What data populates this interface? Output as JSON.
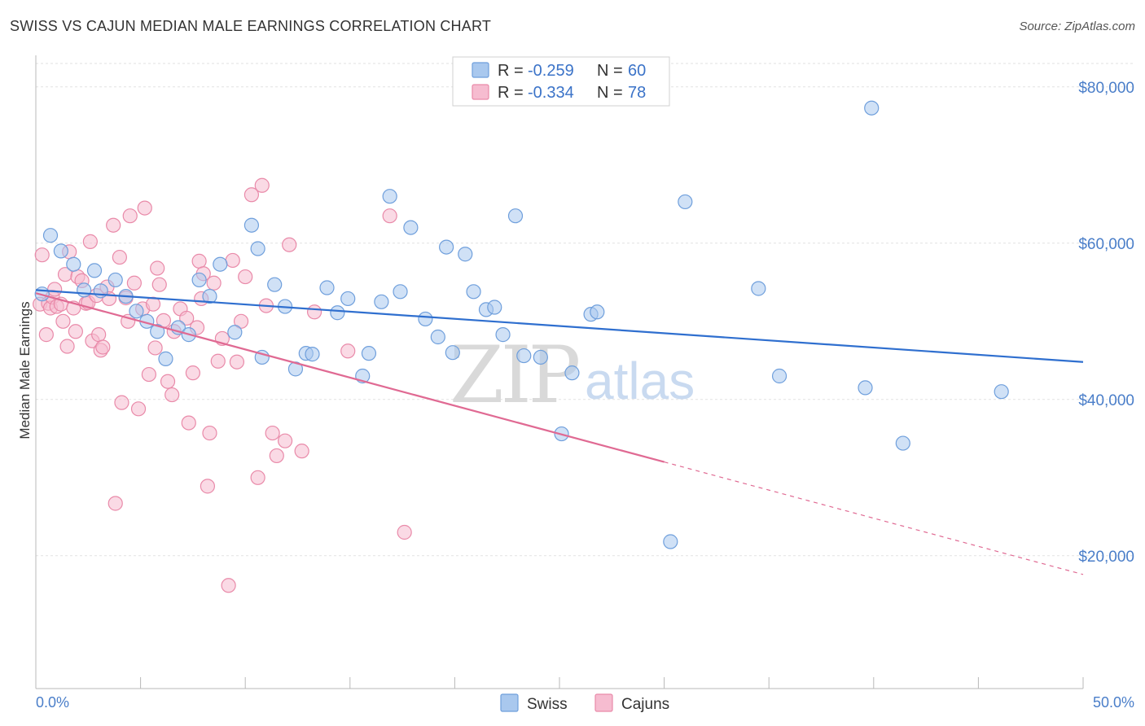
{
  "title": "SWISS VS CAJUN MEDIAN MALE EARNINGS CORRELATION CHART",
  "source": "Source: ZipAtlas.com",
  "watermark": {
    "zip": "ZIP",
    "atlas": "atlas"
  },
  "legend": {
    "swiss": {
      "r_label": "R = ",
      "r_value": "-0.259",
      "n_label": "N = ",
      "n_value": "60"
    },
    "cajuns": {
      "r_label": "R = ",
      "r_value": "-0.334",
      "n_label": "N = ",
      "n_value": "78"
    }
  },
  "bottom_legend": {
    "swiss": "Swiss",
    "cajuns": "Cajuns"
  },
  "colors": {
    "swiss_fill": "#a9c8ee",
    "swiss_stroke": "#6f9fdc",
    "swiss_line": "#2f6fcf",
    "cajun_fill": "#f6bcd0",
    "cajun_stroke": "#e98aa9",
    "cajun_line": "#e06a93",
    "tick_text": "#4a7ec9"
  },
  "chart_data": {
    "type": "scatter",
    "title": "SWISS VS CAJUN MEDIAN MALE EARNINGS CORRELATION CHART",
    "xlabel": "",
    "ylabel": "Median Male Earnings",
    "xlim": [
      0,
      50
    ],
    "ylim": [
      3000,
      83000
    ],
    "x_tick_labels": [
      "0.0%",
      "50.0%"
    ],
    "y_ticks": [
      20000,
      40000,
      60000,
      80000
    ],
    "y_tick_labels": [
      "$20,000",
      "$40,000",
      "$60,000",
      "$80,000"
    ],
    "grid": true,
    "legend_position": "top-center",
    "series": [
      {
        "name": "Swiss",
        "r": -0.259,
        "n": 60,
        "trend": {
          "x0": 0,
          "y0": 54000,
          "x1": 50,
          "y1": 44800
        },
        "points": [
          [
            0.3,
            53500
          ],
          [
            0.7,
            61000
          ],
          [
            1.2,
            59000
          ],
          [
            1.8,
            57300
          ],
          [
            2.3,
            54000
          ],
          [
            2.8,
            56500
          ],
          [
            3.8,
            55300
          ],
          [
            4.3,
            53200
          ],
          [
            4.8,
            51300
          ],
          [
            5.3,
            50000
          ],
          [
            5.8,
            48700
          ],
          [
            6.2,
            45200
          ],
          [
            6.8,
            49200
          ],
          [
            7.3,
            48300
          ],
          [
            7.8,
            55300
          ],
          [
            8.3,
            53200
          ],
          [
            8.8,
            57300
          ],
          [
            9.5,
            48600
          ],
          [
            10.3,
            62300
          ],
          [
            10.6,
            59300
          ],
          [
            10.8,
            45400
          ],
          [
            11.4,
            54700
          ],
          [
            11.9,
            51900
          ],
          [
            12.4,
            43900
          ],
          [
            12.9,
            45900
          ],
          [
            13.2,
            45800
          ],
          [
            13.9,
            54300
          ],
          [
            14.4,
            51100
          ],
          [
            14.9,
            52900
          ],
          [
            15.6,
            43000
          ],
          [
            15.9,
            45900
          ],
          [
            16.5,
            52500
          ],
          [
            16.9,
            66000
          ],
          [
            17.4,
            53800
          ],
          [
            17.9,
            62000
          ],
          [
            18.6,
            50300
          ],
          [
            19.2,
            48000
          ],
          [
            19.6,
            59500
          ],
          [
            19.9,
            46000
          ],
          [
            20.5,
            58600
          ],
          [
            20.9,
            53800
          ],
          [
            21.5,
            51500
          ],
          [
            21.9,
            51800
          ],
          [
            22.3,
            48300
          ],
          [
            22.9,
            63500
          ],
          [
            23.3,
            45600
          ],
          [
            24.1,
            45400
          ],
          [
            25.1,
            35600
          ],
          [
            25.6,
            43400
          ],
          [
            26.5,
            50900
          ],
          [
            26.8,
            51200
          ],
          [
            30.3,
            21800
          ],
          [
            31.0,
            65300
          ],
          [
            34.5,
            54200
          ],
          [
            35.5,
            43000
          ],
          [
            39.6,
            41500
          ],
          [
            39.9,
            77300
          ],
          [
            41.4,
            34400
          ],
          [
            46.1,
            41000
          ],
          [
            3.1,
            53900
          ]
        ]
      },
      {
        "name": "Cajuns",
        "r": -0.334,
        "n": 78,
        "trend": {
          "x0": 0,
          "y0": 53600,
          "x1": 30,
          "y1": 32000,
          "dash_x1": 50,
          "dash_y1": 17600
        },
        "points": [
          [
            0.2,
            52200
          ],
          [
            0.3,
            58500
          ],
          [
            0.5,
            48300
          ],
          [
            0.6,
            52300
          ],
          [
            0.7,
            51700
          ],
          [
            0.8,
            53100
          ],
          [
            0.9,
            54100
          ],
          [
            1.0,
            51900
          ],
          [
            1.2,
            52200
          ],
          [
            1.3,
            50000
          ],
          [
            1.4,
            56000
          ],
          [
            1.5,
            46800
          ],
          [
            1.6,
            58900
          ],
          [
            1.8,
            51700
          ],
          [
            1.9,
            48700
          ],
          [
            2.0,
            55700
          ],
          [
            2.2,
            55200
          ],
          [
            2.4,
            52300
          ],
          [
            2.5,
            52400
          ],
          [
            2.6,
            60200
          ],
          [
            2.7,
            47500
          ],
          [
            2.9,
            53300
          ],
          [
            3.0,
            48300
          ],
          [
            3.1,
            46300
          ],
          [
            3.2,
            46700
          ],
          [
            3.4,
            54400
          ],
          [
            3.5,
            52900
          ],
          [
            3.7,
            62300
          ],
          [
            3.8,
            26700
          ],
          [
            4.0,
            58200
          ],
          [
            4.1,
            39600
          ],
          [
            4.3,
            53000
          ],
          [
            4.4,
            50000
          ],
          [
            4.5,
            63500
          ],
          [
            4.7,
            54900
          ],
          [
            4.9,
            38800
          ],
          [
            5.1,
            51600
          ],
          [
            5.2,
            64500
          ],
          [
            5.4,
            43200
          ],
          [
            5.6,
            52200
          ],
          [
            5.7,
            46600
          ],
          [
            5.8,
            56800
          ],
          [
            5.9,
            54700
          ],
          [
            6.1,
            50100
          ],
          [
            6.3,
            42300
          ],
          [
            6.5,
            40600
          ],
          [
            6.6,
            48700
          ],
          [
            6.9,
            51600
          ],
          [
            7.2,
            50400
          ],
          [
            7.3,
            37000
          ],
          [
            7.5,
            43400
          ],
          [
            7.7,
            49200
          ],
          [
            7.8,
            57700
          ],
          [
            7.9,
            52900
          ],
          [
            8.0,
            56100
          ],
          [
            8.2,
            28900
          ],
          [
            8.3,
            35700
          ],
          [
            8.5,
            54900
          ],
          [
            8.7,
            44900
          ],
          [
            8.9,
            47800
          ],
          [
            9.2,
            16200
          ],
          [
            9.4,
            57800
          ],
          [
            9.6,
            44800
          ],
          [
            9.8,
            50000
          ],
          [
            10.0,
            55700
          ],
          [
            10.3,
            66200
          ],
          [
            10.6,
            30000
          ],
          [
            10.8,
            67400
          ],
          [
            11.0,
            52000
          ],
          [
            11.3,
            35700
          ],
          [
            11.5,
            32800
          ],
          [
            11.9,
            34700
          ],
          [
            12.1,
            59800
          ],
          [
            12.7,
            33400
          ],
          [
            13.3,
            51200
          ],
          [
            14.9,
            46200
          ],
          [
            16.9,
            63500
          ],
          [
            17.6,
            23000
          ]
        ]
      }
    ]
  }
}
